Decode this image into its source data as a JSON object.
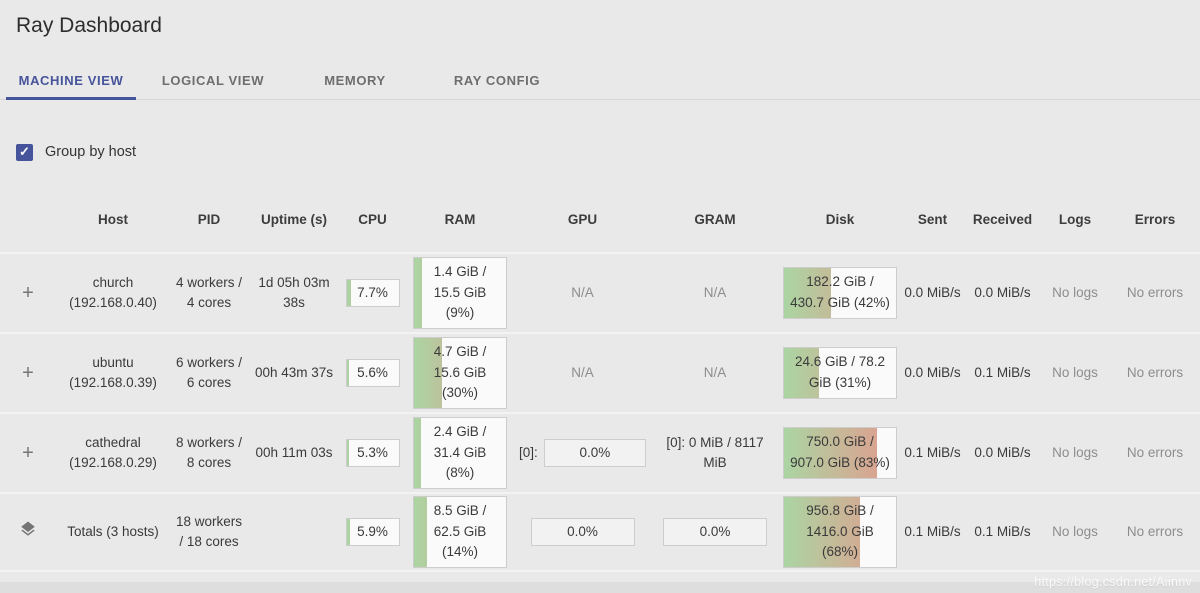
{
  "app": {
    "title": "Ray Dashboard"
  },
  "tabs": [
    {
      "label": "MACHINE VIEW",
      "active": true
    },
    {
      "label": "LOGICAL VIEW",
      "active": false
    },
    {
      "label": "MEMORY",
      "active": false
    },
    {
      "label": "RAY CONFIG",
      "active": false
    }
  ],
  "controls": {
    "group_by_host_label": "Group by host",
    "group_by_host_checked": true,
    "check_glyph": "✓"
  },
  "colors": {
    "accent": "#46549b",
    "usage_green": "#abd5a2",
    "usage_red": "#e39a8d",
    "background": "#e9e9e9"
  },
  "icons": {
    "expand_row": "plus-icon",
    "totals_row": "layers-icon"
  },
  "table": {
    "columns": [
      "Host",
      "PID",
      "Uptime (s)",
      "CPU",
      "RAM",
      "GPU",
      "GRAM",
      "Disk",
      "Sent",
      "Received",
      "Logs",
      "Errors"
    ],
    "rows": [
      {
        "icon": "plus",
        "host": "church",
        "host_ip": "(192.168.0.40)",
        "pid": "4 workers / 4 cores",
        "uptime": "1d 05h 03m 38s",
        "cpu": {
          "label": "7.7%",
          "pct": 7.7
        },
        "ram": {
          "label": "1.4 GiB / 15.5 GiB (9%)",
          "pct": 9
        },
        "gpu": {
          "type": "na",
          "label": "N/A"
        },
        "gram": {
          "type": "na",
          "label": "N/A"
        },
        "disk": {
          "label": "182.2 GiB / 430.7 GiB (42%)",
          "pct": 42
        },
        "sent": "0.0 MiB/s",
        "received": "0.0 MiB/s",
        "logs": "No logs",
        "errors": "No errors"
      },
      {
        "icon": "plus",
        "host": "ubuntu",
        "host_ip": "(192.168.0.39)",
        "pid": "6 workers / 6 cores",
        "uptime": "00h 43m 37s",
        "cpu": {
          "label": "5.6%",
          "pct": 5.6
        },
        "ram": {
          "label": "4.7 GiB / 15.6 GiB (30%)",
          "pct": 30
        },
        "gpu": {
          "type": "na",
          "label": "N/A"
        },
        "gram": {
          "type": "na",
          "label": "N/A"
        },
        "disk": {
          "label": "24.6 GiB / 78.2 GiB (31%)",
          "pct": 31
        },
        "sent": "0.0 MiB/s",
        "received": "0.1 MiB/s",
        "logs": "No logs",
        "errors": "No errors"
      },
      {
        "icon": "plus",
        "host": "cathedral",
        "host_ip": "(192.168.0.29)",
        "pid": "8 workers / 8 cores",
        "uptime": "00h 11m 03s",
        "cpu": {
          "label": "5.3%",
          "pct": 5.3
        },
        "ram": {
          "label": "2.4 GiB / 31.4 GiB (8%)",
          "pct": 8
        },
        "gpu": {
          "type": "indexed",
          "prefix": "[0]:",
          "label": "0.0%",
          "pct": 0
        },
        "gram": {
          "type": "text",
          "label": "[0]: 0 MiB / 8117 MiB"
        },
        "disk": {
          "label": "750.0 GiB / 907.0 GiB (83%)",
          "pct": 83
        },
        "sent": "0.1 MiB/s",
        "received": "0.0 MiB/s",
        "logs": "No logs",
        "errors": "No errors"
      },
      {
        "icon": "layers",
        "host": "Totals (3 hosts)",
        "host_ip": "",
        "pid": "18 workers / 18 cores",
        "uptime": "",
        "cpu": {
          "label": "5.9%",
          "pct": 5.9
        },
        "ram": {
          "label": "8.5 GiB / 62.5 GiB (14%)",
          "pct": 14
        },
        "gpu": {
          "type": "bar",
          "label": "0.0%",
          "pct": 0
        },
        "gram": {
          "type": "bar",
          "label": "0.0%",
          "pct": 0
        },
        "disk": {
          "label": "956.8 GiB / 1416.0 GiB (68%)",
          "pct": 68
        },
        "sent": "0.1 MiB/s",
        "received": "0.1 MiB/s",
        "logs": "No logs",
        "errors": "No errors"
      }
    ]
  },
  "watermark": "https://blog.csdn.net/Aiinnv"
}
